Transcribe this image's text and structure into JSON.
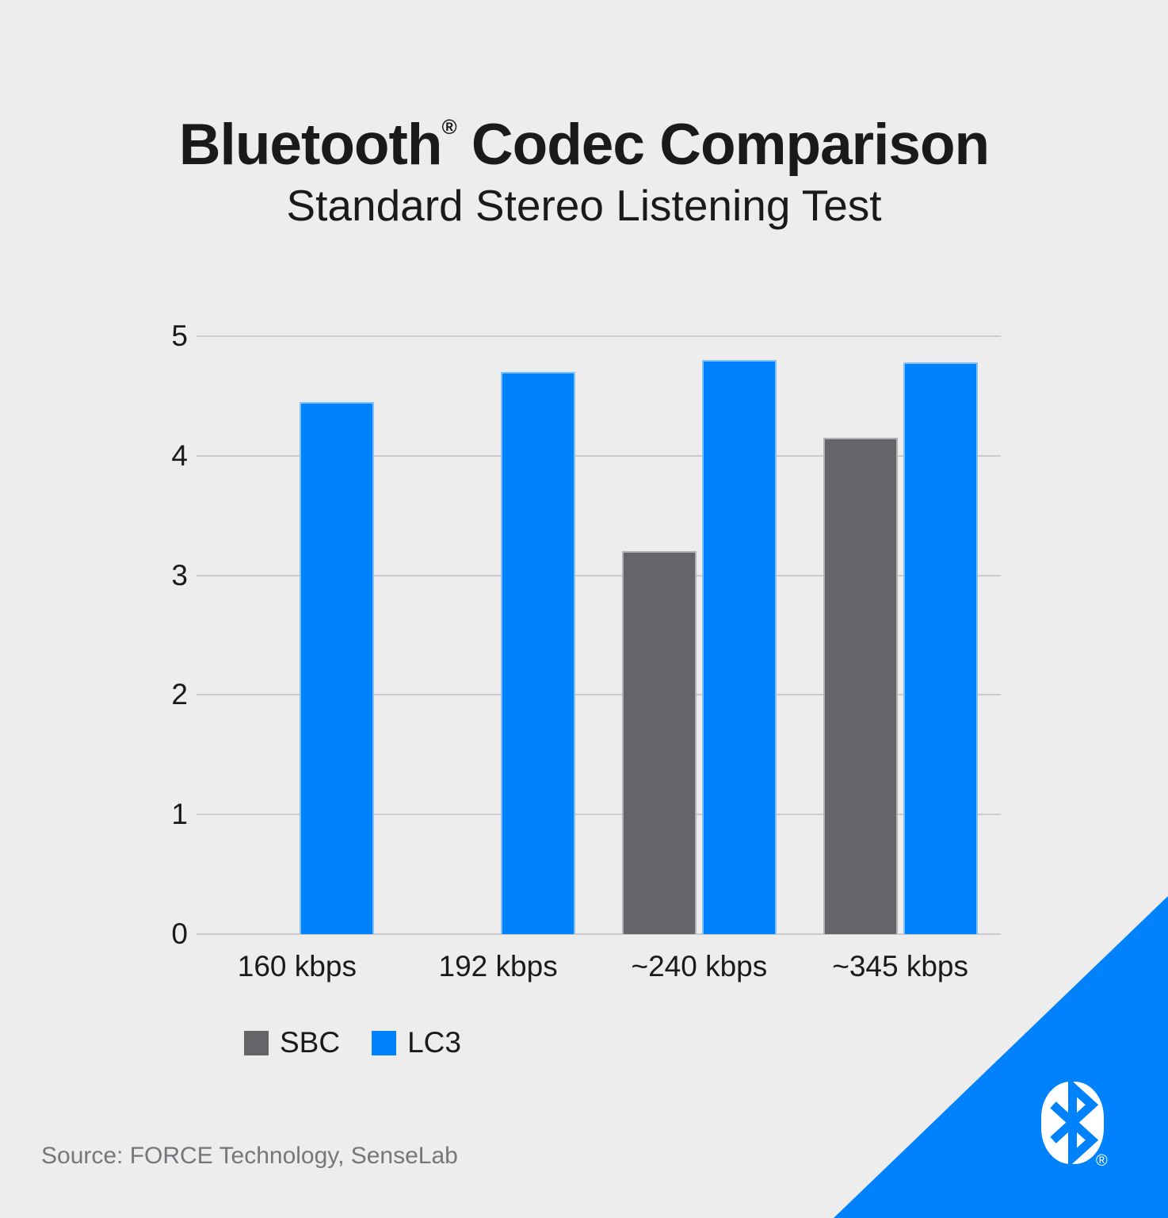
{
  "header": {
    "title_brand": "Bluetooth",
    "title_reg": "®",
    "title_rest": " Codec Comparison",
    "subtitle": "Standard Stereo Listening Test"
  },
  "chart_data": {
    "type": "bar",
    "title": "Bluetooth® Codec Comparison",
    "subtitle": "Standard Stereo Listening Test",
    "categories": [
      "160 kbps",
      "192 kbps",
      "~240 kbps",
      "~345 kbps"
    ],
    "series": [
      {
        "name": "SBC",
        "color": "#636569",
        "values": [
          null,
          null,
          3.2,
          4.15
        ]
      },
      {
        "name": "LC3",
        "color": "#0082fc",
        "values": [
          4.45,
          4.7,
          4.8,
          4.78
        ]
      }
    ],
    "ylim": [
      0,
      5
    ],
    "yticks": [
      0,
      1,
      2,
      3,
      4,
      5
    ],
    "grid": true,
    "legend_position": "bottom-left"
  },
  "footer": {
    "source": "Source: FORCE Technology, SenseLab"
  },
  "logo": {
    "name": "bluetooth-logo",
    "reg": "®",
    "triangle_color": "#0082fc",
    "mark_color": "#ffffff"
  },
  "colors": {
    "background": "#ededee",
    "text": "#1a1a1c",
    "gridline": "#cbcbcd",
    "muted_text": "#76777b",
    "bar_outline": "rgba(255,255,255,0.5)"
  }
}
